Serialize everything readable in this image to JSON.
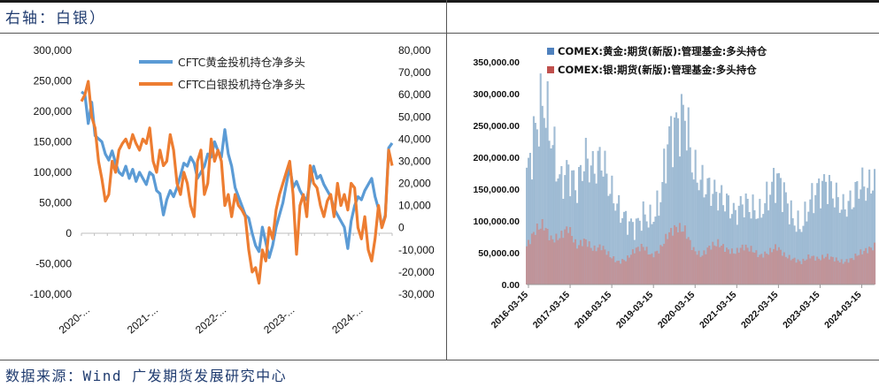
{
  "header": {
    "title": "右轴：白银）"
  },
  "footer": {
    "source": "数据来源：Wind 广发期货发展研究中心"
  },
  "colors": {
    "gold": "#5b9bd5",
    "silver": "#ed7d31",
    "gold_bar": "#8fb0cc",
    "silver_bar": "#c98a8a",
    "gold_legend": "#4f81bd",
    "silver_legend": "#c0504d"
  },
  "chart_data": [
    {
      "type": "line",
      "legend": [
        "CFTC黄金投机持仓净多头",
        "CFTC白银投机持仓净多头"
      ],
      "x_ticks": [
        "2020-...",
        "2021-...",
        "2022-...",
        "2023-...",
        "2024-..."
      ],
      "left_ticks": [
        "300,000",
        "250,000",
        "200,000",
        "150,000",
        "100,000",
        "50,000",
        "0",
        "-50,000",
        "-100,000"
      ],
      "right_ticks": [
        "80,000",
        "70,000",
        "60,000",
        "50,000",
        "40,000",
        "30,000",
        "20,000",
        "10,000",
        "0",
        "-10,000",
        "-20,000",
        "-30,000"
      ],
      "ylim_left": [
        -100000,
        300000
      ],
      "ylim_right": [
        -30000,
        80000
      ],
      "x_range": [
        2020.0,
        2024.55
      ],
      "series": [
        {
          "name": "CFTC黄金投机持仓净多头",
          "axis": "left",
          "x": [
            2020.0,
            2020.05,
            2020.1,
            2020.15,
            2020.2,
            2020.25,
            2020.3,
            2020.35,
            2020.4,
            2020.45,
            2020.5,
            2020.55,
            2020.6,
            2020.65,
            2020.7,
            2020.75,
            2020.8,
            2020.85,
            2020.9,
            2020.95,
            2021.0,
            2021.05,
            2021.1,
            2021.15,
            2021.2,
            2021.25,
            2021.3,
            2021.35,
            2021.4,
            2021.45,
            2021.5,
            2021.55,
            2021.6,
            2021.65,
            2021.7,
            2021.75,
            2021.8,
            2021.85,
            2021.9,
            2021.95,
            2022.0,
            2022.05,
            2022.1,
            2022.15,
            2022.2,
            2022.25,
            2022.3,
            2022.35,
            2022.4,
            2022.45,
            2022.5,
            2022.55,
            2022.6,
            2022.65,
            2022.7,
            2022.75,
            2022.8,
            2022.85,
            2022.9,
            2022.95,
            2023.0,
            2023.05,
            2023.1,
            2023.15,
            2023.2,
            2023.25,
            2023.3,
            2023.35,
            2023.4,
            2023.45,
            2023.5,
            2023.55,
            2023.6,
            2023.65,
            2023.7,
            2023.75,
            2023.8,
            2023.85,
            2023.9,
            2023.95,
            2024.0,
            2024.05,
            2024.1,
            2024.15,
            2024.2,
            2024.25,
            2024.3,
            2024.35,
            2024.4,
            2024.45,
            2024.5,
            2024.55
          ],
          "values": [
            232000,
            228000,
            180000,
            215000,
            160000,
            155000,
            150000,
            130000,
            120000,
            135000,
            115000,
            100000,
            95000,
            110000,
            90000,
            105000,
            85000,
            100000,
            90000,
            80000,
            100000,
            95000,
            70000,
            65000,
            30000,
            55000,
            70000,
            60000,
            75000,
            95000,
            115000,
            110000,
            125000,
            115000,
            90000,
            100000,
            110000,
            130000,
            125000,
            150000,
            135000,
            125000,
            170000,
            130000,
            110000,
            75000,
            60000,
            45000,
            30000,
            25000,
            0,
            -20000,
            -30000,
            10000,
            -15000,
            -40000,
            -20000,
            10000,
            30000,
            50000,
            80000,
            110000,
            75000,
            85000,
            70000,
            60000,
            55000,
            85000,
            110000,
            90000,
            95000,
            80000,
            70000,
            60000,
            40000,
            30000,
            20000,
            10000,
            -25000,
            20000,
            45000,
            60000,
            55000,
            70000,
            80000,
            90000,
            60000,
            40000,
            10000,
            30000,
            140000,
            148000
          ]
        },
        {
          "name": "CFTC白银投机持仓净多头",
          "axis": "right",
          "x": [
            2020.0,
            2020.05,
            2020.1,
            2020.15,
            2020.2,
            2020.25,
            2020.3,
            2020.35,
            2020.4,
            2020.45,
            2020.5,
            2020.55,
            2020.6,
            2020.65,
            2020.7,
            2020.75,
            2020.8,
            2020.85,
            2020.9,
            2020.95,
            2021.0,
            2021.05,
            2021.1,
            2021.15,
            2021.2,
            2021.25,
            2021.3,
            2021.35,
            2021.4,
            2021.45,
            2021.5,
            2021.55,
            2021.6,
            2021.65,
            2021.7,
            2021.75,
            2021.8,
            2021.85,
            2021.9,
            2021.95,
            2022.0,
            2022.05,
            2022.1,
            2022.15,
            2022.2,
            2022.25,
            2022.3,
            2022.35,
            2022.4,
            2022.45,
            2022.5,
            2022.55,
            2022.6,
            2022.65,
            2022.7,
            2022.75,
            2022.8,
            2022.85,
            2022.9,
            2022.95,
            2023.0,
            2023.05,
            2023.1,
            2023.15,
            2023.2,
            2023.25,
            2023.3,
            2023.35,
            2023.4,
            2023.45,
            2023.5,
            2023.55,
            2023.6,
            2023.65,
            2023.7,
            2023.75,
            2023.8,
            2023.85,
            2023.9,
            2023.95,
            2024.0,
            2024.05,
            2024.1,
            2024.15,
            2024.2,
            2024.25,
            2024.3,
            2024.35,
            2024.4,
            2024.45,
            2024.5,
            2024.55
          ],
          "values": [
            57000,
            60000,
            66000,
            50000,
            45000,
            30000,
            22000,
            12000,
            15000,
            30000,
            25000,
            35000,
            38000,
            40000,
            36000,
            42000,
            38000,
            35000,
            40000,
            38000,
            45000,
            30000,
            25000,
            35000,
            28000,
            30000,
            42000,
            35000,
            20000,
            15000,
            25000,
            20000,
            10000,
            5000,
            30000,
            35000,
            15000,
            20000,
            40000,
            30000,
            35000,
            30000,
            10000,
            15000,
            5000,
            15000,
            10000,
            8000,
            5000,
            -10000,
            -20000,
            -18000,
            -25000,
            -10000,
            -15000,
            0,
            -5000,
            8000,
            15000,
            20000,
            25000,
            30000,
            15000,
            -12000,
            10000,
            15000,
            5000,
            28000,
            20000,
            18000,
            10000,
            5000,
            12000,
            15000,
            5000,
            20000,
            10000,
            15000,
            8000,
            20000,
            18000,
            0,
            -5000,
            5000,
            -10000,
            -15000,
            -5000,
            10000,
            0,
            5000,
            35000,
            28000
          ]
        }
      ]
    },
    {
      "type": "area",
      "legend": [
        "COMEX:黄金:期货(新版):管理基金:多头持仓",
        "COMEX:银:期货(新版):管理基金:多头持仓"
      ],
      "y_ticks": [
        "350,000.00",
        "300,000.00",
        "250,000.00",
        "200,000.00",
        "150,000.00",
        "100,000.00",
        "50,000.00",
        "0.00"
      ],
      "x_ticks": [
        "2016-03-15",
        "2017-03-15",
        "2018-03-15",
        "2019-03-15",
        "2020-03-15",
        "2021-03-15",
        "2022-03-15",
        "2023-03-15",
        "2024-03-15"
      ],
      "ylim": [
        0,
        350000
      ],
      "x_range": [
        2016.2,
        2024.55
      ],
      "series": [
        {
          "name": "COMEX:黄金:期货(新版):管理基金:多头持仓",
          "x": [
            2016.2,
            2016.4,
            2016.6,
            2016.8,
            2017.0,
            2017.2,
            2017.4,
            2017.6,
            2017.8,
            2018.0,
            2018.2,
            2018.4,
            2018.6,
            2018.8,
            2019.0,
            2019.2,
            2019.4,
            2019.6,
            2019.8,
            2020.0,
            2020.2,
            2020.4,
            2020.6,
            2020.8,
            2021.0,
            2021.2,
            2021.4,
            2021.6,
            2021.8,
            2022.0,
            2022.2,
            2022.4,
            2022.6,
            2022.8,
            2023.0,
            2023.2,
            2023.4,
            2023.6,
            2023.8,
            2024.0,
            2024.2,
            2024.4,
            2024.55
          ],
          "values": [
            170000,
            240000,
            290000,
            230000,
            160000,
            180000,
            150000,
            200000,
            180000,
            200000,
            150000,
            120000,
            100000,
            90000,
            110000,
            100000,
            130000,
            230000,
            250000,
            270000,
            180000,
            160000,
            150000,
            140000,
            130000,
            110000,
            130000,
            120000,
            110000,
            140000,
            170000,
            140000,
            100000,
            90000,
            130000,
            150000,
            160000,
            140000,
            120000,
            130000,
            160000,
            150000,
            170000
          ]
        },
        {
          "name": "COMEX:银:期货(新版):管理基金:多头持仓",
          "x": [
            2016.2,
            2016.4,
            2016.6,
            2016.8,
            2017.0,
            2017.2,
            2017.4,
            2017.6,
            2017.8,
            2018.0,
            2018.2,
            2018.4,
            2018.6,
            2018.8,
            2019.0,
            2019.2,
            2019.4,
            2019.6,
            2019.8,
            2020.0,
            2020.2,
            2020.4,
            2020.6,
            2020.8,
            2021.0,
            2021.2,
            2021.4,
            2021.6,
            2021.8,
            2022.0,
            2022.2,
            2022.4,
            2022.6,
            2022.8,
            2023.0,
            2023.2,
            2023.4,
            2023.6,
            2023.8,
            2024.0,
            2024.2,
            2024.4,
            2024.55
          ],
          "values": [
            60000,
            85000,
            95000,
            70000,
            75000,
            90000,
            60000,
            70000,
            55000,
            60000,
            45000,
            35000,
            40000,
            55000,
            60000,
            45000,
            55000,
            80000,
            90000,
            85000,
            55000,
            45000,
            60000,
            65000,
            55000,
            50000,
            60000,
            55000,
            45000,
            50000,
            60000,
            45000,
            40000,
            35000,
            45000,
            40000,
            45000,
            40000,
            35000,
            40000,
            50000,
            55000,
            60000
          ]
        }
      ]
    }
  ]
}
